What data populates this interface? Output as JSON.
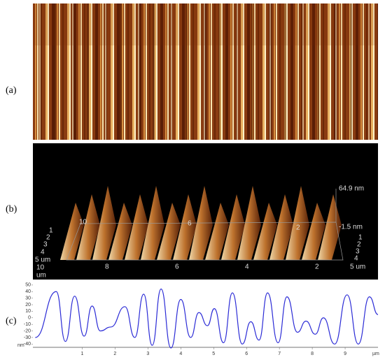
{
  "panels": {
    "a": {
      "label": "(a)"
    },
    "b": {
      "label": "(b)",
      "z_max": "64.9 nm",
      "z_min": "-1.5 nm",
      "front_ticks": [
        "8",
        "6",
        "4",
        "2"
      ],
      "front_start": "10",
      "front_unit": "um",
      "back_ticks": [
        "10",
        "6",
        "2"
      ],
      "depth_ticks": [
        "1",
        "2",
        "3",
        "4"
      ],
      "depth_end": "5 um",
      "front_right": "5 um"
    },
    "c": {
      "label": "(c)"
    }
  },
  "chart_data": {
    "type": "line",
    "ylabel": "nm",
    "xlabel": "µm",
    "color": "#2b2bd6",
    "x": [
      -0.43,
      0.21,
      0.49,
      0.77,
      1.06,
      1.3,
      1.55,
      1.87,
      2.3,
      2.6,
      2.87,
      3.13,
      3.4,
      3.7,
      4.0,
      4.3,
      4.55,
      4.81,
      5.02,
      5.3,
      5.57,
      5.87,
      6.13,
      6.38,
      6.64,
      6.96,
      7.23,
      7.55,
      7.81,
      8.09,
      8.34,
      8.68,
      9.06,
      9.4,
      9.74,
      10.0
    ],
    "values": [
      -30,
      40,
      -36,
      33,
      -28,
      18,
      -20,
      -14,
      17,
      -30,
      36,
      -42,
      44,
      -46,
      28,
      -30,
      8,
      -12,
      14,
      -38,
      38,
      -40,
      -6,
      -34,
      38,
      -38,
      32,
      -22,
      -5,
      -25,
      0,
      -40,
      35,
      -40,
      32,
      5
    ],
    "xlim": [
      -0.5,
      10.0
    ],
    "ylim": [
      -45,
      52
    ],
    "xticks": [
      1,
      2,
      3,
      4,
      5,
      6,
      7,
      8,
      9
    ],
    "yticks": [
      50,
      40,
      30,
      20,
      10,
      0,
      -10,
      -20,
      -30,
      -40
    ]
  }
}
